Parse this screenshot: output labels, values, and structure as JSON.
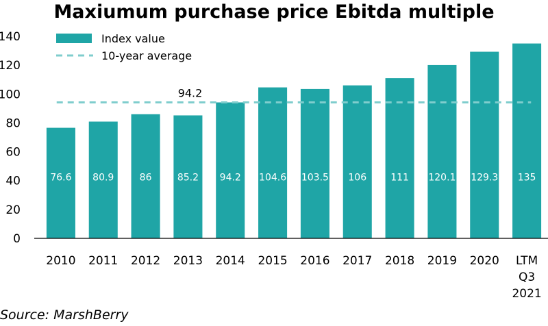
{
  "chart_data": {
    "type": "bar",
    "title": "Maxiumum purchase price Ebitda multiple",
    "source": "Source: MarshBerry",
    "categories": [
      "2010",
      "2011",
      "2012",
      "2013",
      "2014",
      "2015",
      "2016",
      "2017",
      "2018",
      "2019",
      "2020",
      "LTM Q3 2021"
    ],
    "series": [
      {
        "name": "Index value",
        "values": [
          76.6,
          80.9,
          86,
          85.2,
          94.2,
          104.6,
          103.5,
          106,
          111,
          120.1,
          129.3,
          135
        ]
      }
    ],
    "reference_line": {
      "name": "10-year average",
      "value": 94.2,
      "label": "94.2"
    },
    "ylim": [
      0,
      140
    ],
    "yticks": [
      0,
      20,
      40,
      60,
      80,
      100,
      120,
      140
    ],
    "grid": false,
    "legend_position": "top-left",
    "colors": {
      "bar": "#1fa5a6",
      "average_line": "#7fcdcd"
    }
  }
}
